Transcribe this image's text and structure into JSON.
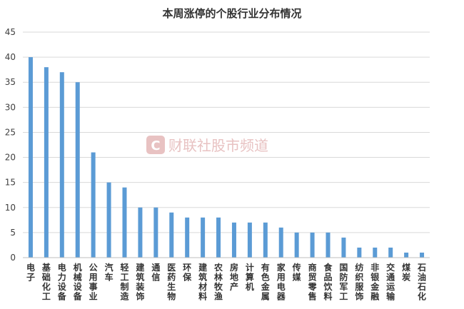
{
  "chart_data": {
    "type": "bar",
    "title": "本周涨停的个股行业分布情况",
    "xlabel": "",
    "ylabel": "",
    "ylim": [
      0,
      45
    ],
    "yticks": [
      0,
      5,
      10,
      15,
      20,
      25,
      30,
      35,
      40,
      45
    ],
    "grid": true,
    "legend": "none",
    "bar_color": "#5b9bd5",
    "categories": [
      "电子",
      "基础化工",
      "电力设备",
      "机械设备",
      "公用事业",
      "汽车",
      "轻工制造",
      "建筑装饰",
      "通信",
      "医药生物",
      "环保",
      "建筑材料",
      "农林牧渔",
      "房地产",
      "计算机",
      "有色金属",
      "家用电器",
      "传媒",
      "商贸零售",
      "食品饮料",
      "国防军工",
      "纺织服饰",
      "非银金融",
      "交通运输",
      "煤炭",
      "石油石化"
    ],
    "values": [
      40,
      38,
      37,
      35,
      21,
      15,
      14,
      10,
      10,
      9,
      8,
      8,
      8,
      7,
      7,
      7,
      6,
      5,
      5,
      5,
      4,
      2,
      2,
      2,
      1,
      1
    ]
  },
  "watermark": {
    "text": "财联社股市频道",
    "logo_letter": "C",
    "color": "#e8c2c2"
  }
}
